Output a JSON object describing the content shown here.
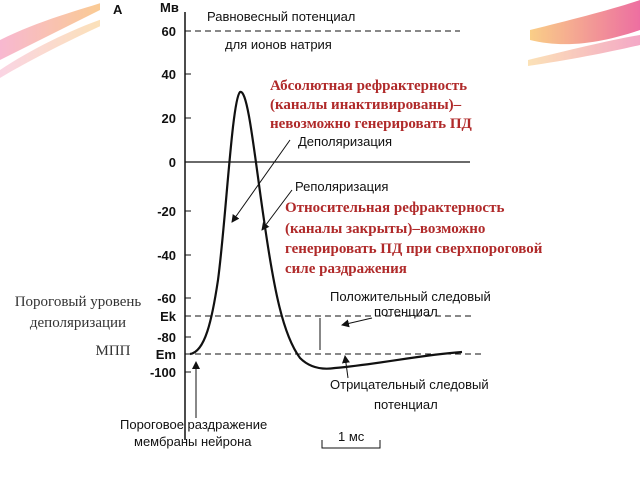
{
  "figure": {
    "panel_label": "А",
    "unit_label": "Мв",
    "y_ticks": [
      "60",
      "40",
      "20",
      "0",
      "-20",
      "-40",
      "-60",
      "Ek",
      "-80",
      "Em",
      "-100"
    ],
    "equilibrium": [
      "Равновесный потенциал",
      "для ионов натрия"
    ],
    "absolute_refractory": [
      "Абсолютная рефрактерность",
      "(каналы инактивированы)–",
      "невозможно генерировать ПД"
    ],
    "depolarization": "Деполяризация",
    "repolarization": "Реполяризация",
    "relative_refractory": [
      "Относительная рефрактерность",
      "(каналы закрыты)–возможно",
      "генерировать ПД при сверхпороговой",
      "силе раздражения"
    ],
    "positive_trace": [
      "Положительный следовый",
      "потенциал"
    ],
    "negative_trace": [
      "Отрицательный следовый",
      "потенциал"
    ],
    "threshold_stimulus": [
      "Пороговое раздражение",
      "мембраны нейрона"
    ],
    "time_scale": "1 мс",
    "threshold_level": [
      "Пороговый уровень",
      "деполяризации"
    ],
    "resting_potential": "МПП"
  }
}
